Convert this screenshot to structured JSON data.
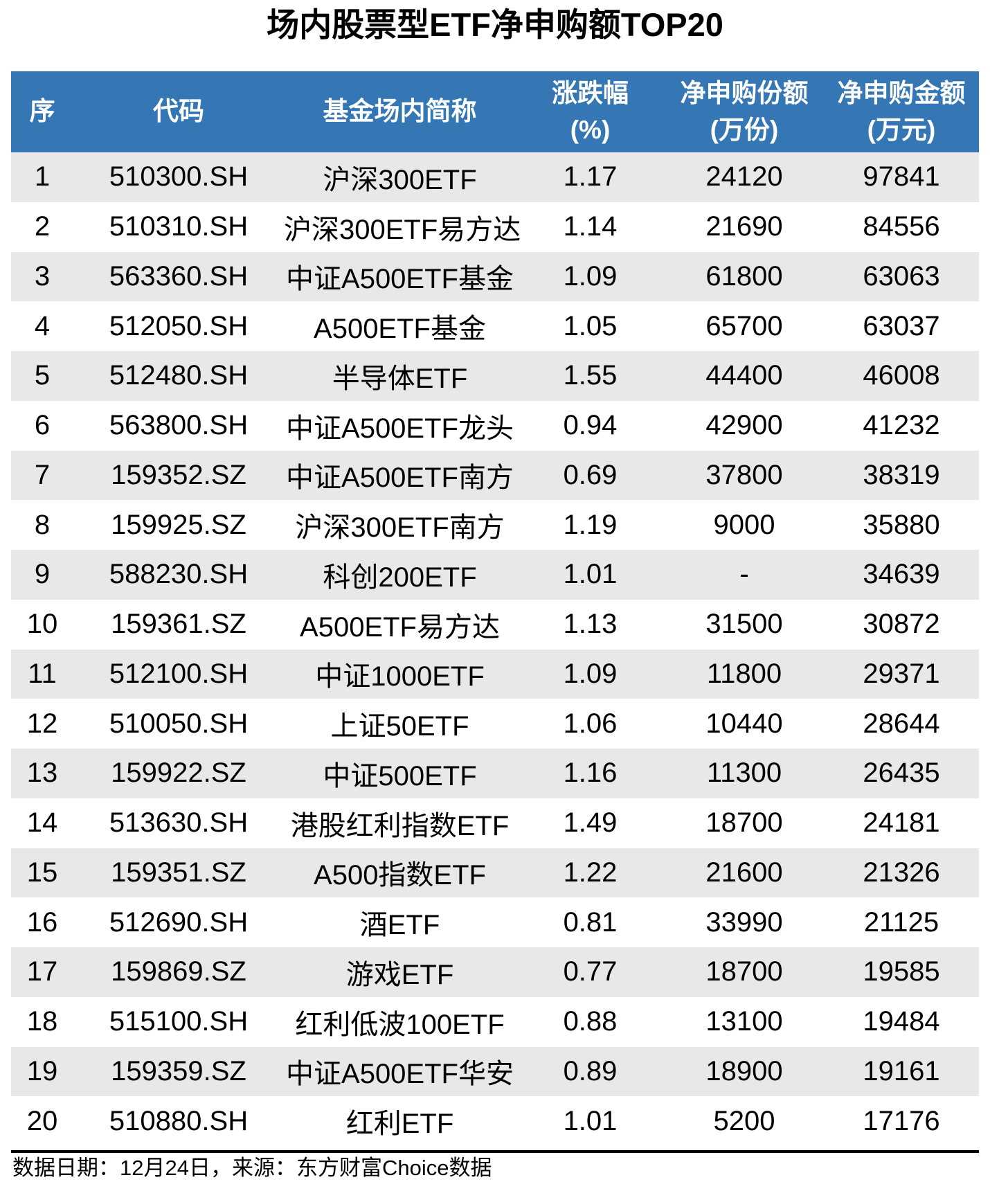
{
  "page": {
    "title": "场内股票型ETF净申购额TOP20",
    "footer": "数据日期：12月24日，来源：东方财富Choice数据"
  },
  "colors": {
    "header_bg": "#3576B4",
    "header_text": "#FFFFFF",
    "row_alt_bg": "#E8E8E8",
    "row_bg": "#FFFFFF",
    "text": "#000000",
    "divider": "#000000"
  },
  "header": {
    "columns": [
      {
        "line1": "序",
        "line2": ""
      },
      {
        "line1": "代码",
        "line2": ""
      },
      {
        "line1": "基金场内简称",
        "line2": ""
      },
      {
        "line1": "涨跌幅",
        "line2": "(%)"
      },
      {
        "line1": "净申购份额",
        "line2": "(万份)"
      },
      {
        "line1": "净申购金额",
        "line2": "(万元)"
      }
    ]
  },
  "chart_data": {
    "type": "table",
    "title": "场内股票型ETF净申购额TOP20",
    "columns": [
      "序",
      "代码",
      "基金场内简称",
      "涨跌幅(%)",
      "净申购份额(万份)",
      "净申购金额(万元)"
    ],
    "rows": [
      [
        "1",
        "510300.SH",
        "沪深300ETF",
        "1.17",
        "24120",
        "97841"
      ],
      [
        "2",
        "510310.SH",
        "沪深300ETF易方达",
        "1.14",
        "21690",
        "84556"
      ],
      [
        "3",
        "563360.SH",
        "中证A500ETF基金",
        "1.09",
        "61800",
        "63063"
      ],
      [
        "4",
        "512050.SH",
        "A500ETF基金",
        "1.05",
        "65700",
        "63037"
      ],
      [
        "5",
        "512480.SH",
        "半导体ETF",
        "1.55",
        "44400",
        "46008"
      ],
      [
        "6",
        "563800.SH",
        "中证A500ETF龙头",
        "0.94",
        "42900",
        "41232"
      ],
      [
        "7",
        "159352.SZ",
        "中证A500ETF南方",
        "0.69",
        "37800",
        "38319"
      ],
      [
        "8",
        "159925.SZ",
        "沪深300ETF南方",
        "1.19",
        "9000",
        "35880"
      ],
      [
        "9",
        "588230.SH",
        "科创200ETF",
        "1.01",
        "-",
        "34639"
      ],
      [
        "10",
        "159361.SZ",
        "A500ETF易方达",
        "1.13",
        "31500",
        "30872"
      ],
      [
        "11",
        "512100.SH",
        "中证1000ETF",
        "1.09",
        "11800",
        "29371"
      ],
      [
        "12",
        "510050.SH",
        "上证50ETF",
        "1.06",
        "10440",
        "28644"
      ],
      [
        "13",
        "159922.SZ",
        "中证500ETF",
        "1.16",
        "11300",
        "26435"
      ],
      [
        "14",
        "513630.SH",
        "港股红利指数ETF",
        "1.49",
        "18700",
        "24181"
      ],
      [
        "15",
        "159351.SZ",
        "A500指数ETF",
        "1.22",
        "21600",
        "21326"
      ],
      [
        "16",
        "512690.SH",
        "酒ETF",
        "0.81",
        "33990",
        "21125"
      ],
      [
        "17",
        "159869.SZ",
        "游戏ETF",
        "0.77",
        "18700",
        "19585"
      ],
      [
        "18",
        "515100.SH",
        "红利低波100ETF",
        "0.88",
        "13100",
        "19484"
      ],
      [
        "19",
        "159359.SZ",
        "中证A500ETF华安",
        "0.89",
        "18900",
        "19161"
      ],
      [
        "20",
        "510880.SH",
        "红利ETF",
        "1.01",
        "5200",
        "17176"
      ]
    ],
    "source_note": "数据日期：12月24日，来源：东方财富Choice数据",
    "layout_hints": {
      "header_rows": 1,
      "striped": true,
      "first_stripe": "gray"
    }
  }
}
